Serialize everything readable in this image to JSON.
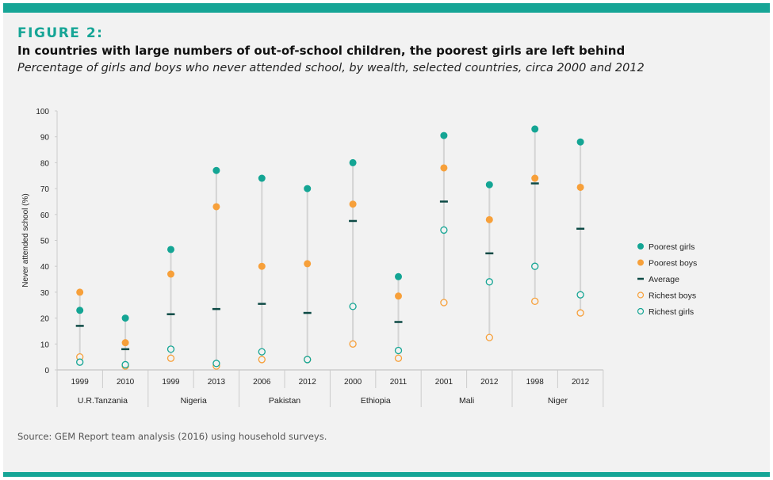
{
  "header": {
    "figure_label": "FIGURE 2:",
    "title": "In countries with large numbers of out-of-school children, the poorest girls are left behind",
    "subtitle": "Percentage of girls and boys who never attended school, by wealth, selected countries, circa 2000 and 2012"
  },
  "source": "Source: GEM Report team analysis (2016) using household surveys.",
  "chart_data": {
    "type": "scatter",
    "title": "",
    "ylabel": "Never attended school (%)",
    "ylim": [
      0,
      100
    ],
    "yticks": [
      0,
      10,
      20,
      30,
      40,
      50,
      60,
      70,
      80,
      90,
      100
    ],
    "grid": false,
    "legend_position": "right",
    "colors": {
      "teal": "#14a594",
      "orange": "#f7a03a",
      "average": "#0d4a45"
    },
    "groups": [
      {
        "country": "U.R.Tanzania",
        "years": [
          "1999",
          "2010"
        ]
      },
      {
        "country": "Nigeria",
        "years": [
          "1999",
          "2013"
        ]
      },
      {
        "country": "Pakistan",
        "years": [
          "2006",
          "2012"
        ]
      },
      {
        "country": "Ethiopia",
        "years": [
          "2000",
          "2011"
        ]
      },
      {
        "country": "Mali",
        "years": [
          "2001",
          "2012"
        ]
      },
      {
        "country": "Niger",
        "years": [
          "1998",
          "2012"
        ]
      }
    ],
    "series": [
      {
        "name": "Poorest girls",
        "marker": "filled-circle",
        "color": "#14a594",
        "values": [
          23,
          20,
          46.5,
          77,
          74,
          70,
          80,
          36,
          90.5,
          71.5,
          93,
          88
        ]
      },
      {
        "name": "Poorest boys",
        "marker": "filled-circle",
        "color": "#f7a03a",
        "values": [
          30,
          10.5,
          37,
          63,
          40,
          41,
          64,
          28.5,
          78,
          58,
          74,
          70.5
        ]
      },
      {
        "name": "Average",
        "marker": "dash",
        "color": "#0d4a45",
        "values": [
          17,
          8,
          21.5,
          23.5,
          25.5,
          22,
          57.5,
          18.5,
          65,
          45,
          72,
          54.5
        ]
      },
      {
        "name": "Richest boys",
        "marker": "open-circle",
        "color": "#f7a03a",
        "values": [
          5,
          1.5,
          4.5,
          1.5,
          4,
          4,
          10,
          4.5,
          26,
          12.5,
          26.5,
          22
        ]
      },
      {
        "name": "Richest girls",
        "marker": "open-circle",
        "color": "#14a594",
        "values": [
          3,
          2,
          8,
          2.5,
          7,
          4,
          24.5,
          7.5,
          54,
          34,
          40,
          29
        ]
      }
    ]
  }
}
